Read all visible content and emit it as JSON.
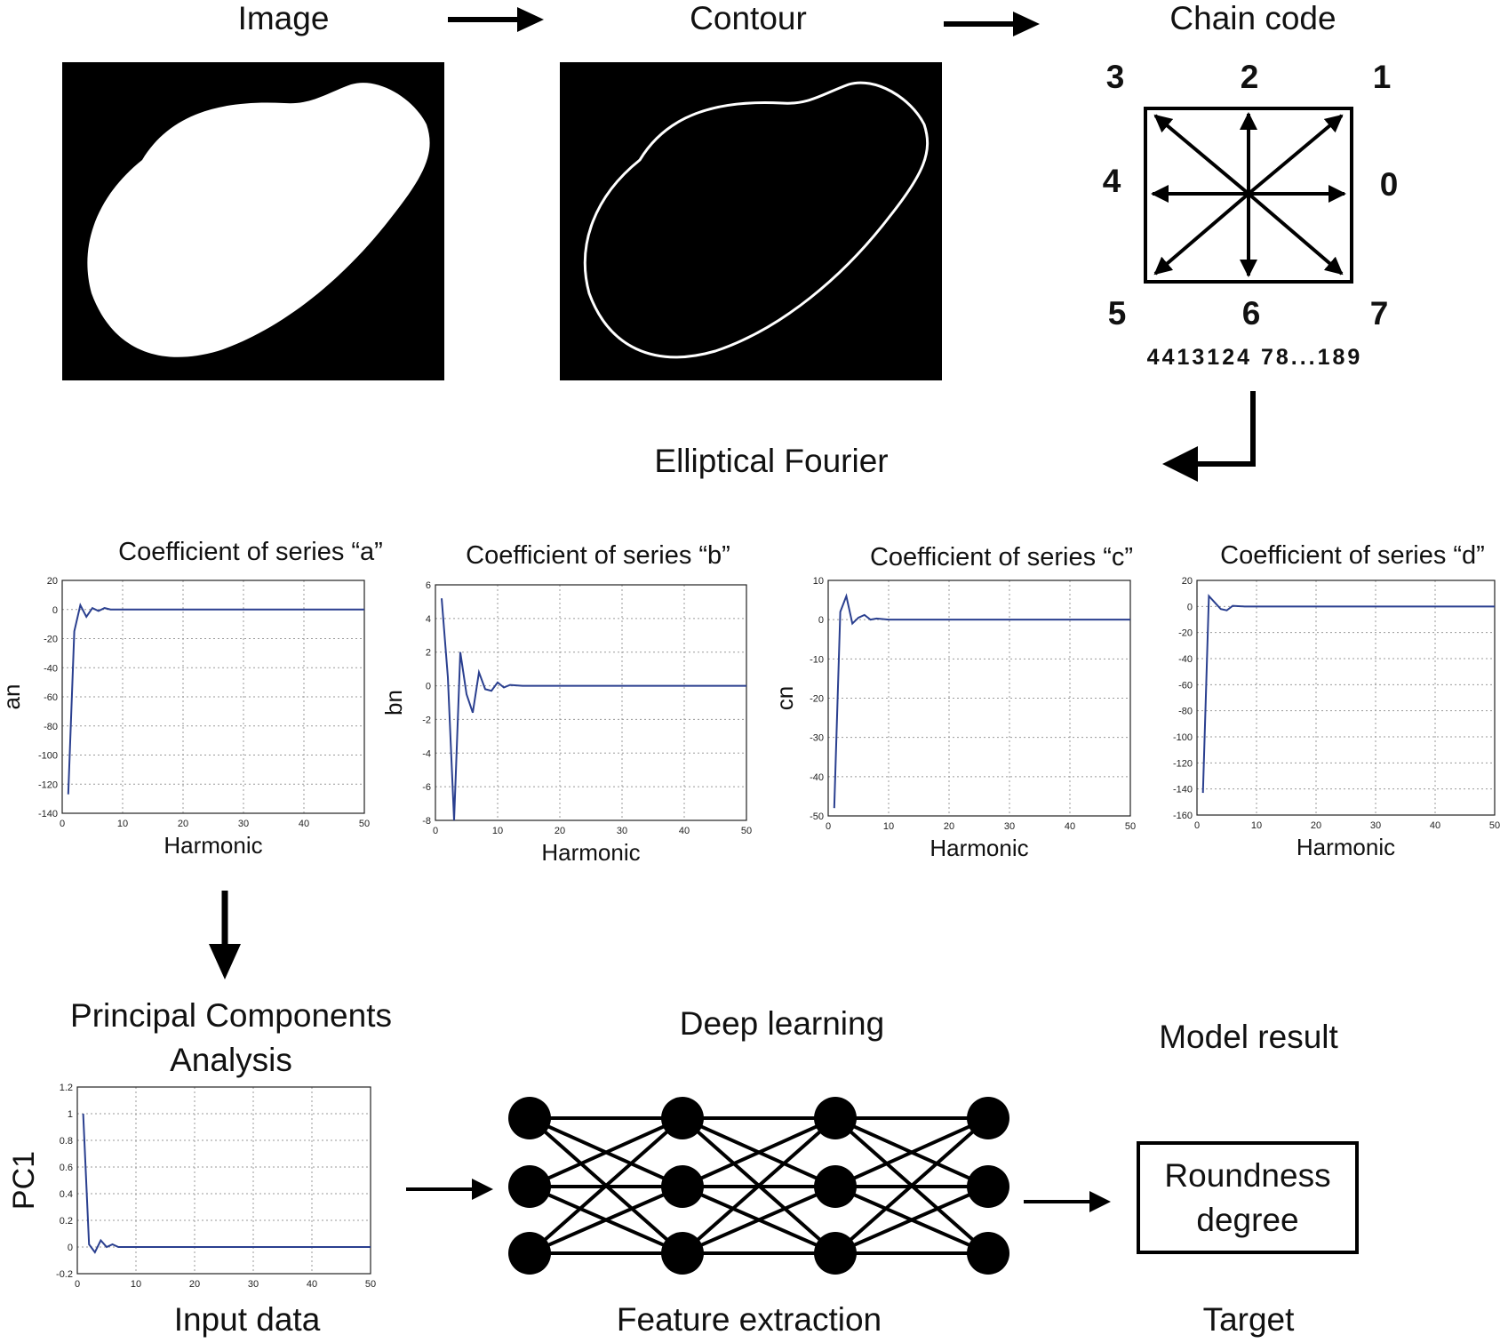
{
  "pipeline": {
    "image_label": "Image",
    "contour_label": "Contour",
    "chain_code_label": "Chain code",
    "direction_numbers": [
      "3",
      "2",
      "1",
      "4",
      "0",
      "5",
      "6",
      "7"
    ],
    "chain_code_sequence": "4413124 78...189",
    "elliptical_fourier_label": "Elliptical Fourier",
    "pca_label": "Principal Components\nAnalysis",
    "deep_learning_label": "Deep learning",
    "model_result_label": "Model result",
    "result_box_text": "Roundness\ndegree",
    "input_data_label": "Input data",
    "feature_extraction_label": "Feature extraction",
    "target_label": "Target"
  },
  "colors": {
    "line": "#2a3f8f",
    "grid": "#9a9a9a",
    "shape": "#ffffff",
    "panel": "#000000"
  },
  "chart_data": [
    {
      "type": "line",
      "title": "Coefficient of series “a”",
      "xlabel": "Harmonic",
      "ylabel": "an",
      "xlim": [
        0,
        50
      ],
      "ylim": [
        -140,
        20
      ],
      "grid": true,
      "xticks": [
        0,
        10,
        20,
        30,
        40,
        50
      ],
      "yticks": [
        20,
        0,
        -20,
        -40,
        -60,
        -80,
        -100,
        -120,
        -140
      ],
      "x": [
        1,
        2,
        3,
        4,
        5,
        6,
        7,
        8,
        10,
        15,
        20,
        30,
        40,
        50
      ],
      "y": [
        -127,
        -15,
        3,
        -5,
        1,
        -1,
        1,
        0,
        0,
        0,
        0,
        0,
        0,
        0
      ]
    },
    {
      "type": "line",
      "title": "Coefficient of series “b”",
      "xlabel": "Harmonic",
      "ylabel": "bn",
      "xlim": [
        0,
        50
      ],
      "ylim": [
        -8,
        6
      ],
      "grid": true,
      "xticks": [
        0,
        10,
        20,
        30,
        40,
        50
      ],
      "yticks": [
        6,
        4,
        2,
        0,
        -2,
        -4,
        -6,
        -8
      ],
      "x": [
        1,
        2,
        3,
        4,
        5,
        6,
        7,
        8,
        9,
        10,
        11,
        12,
        14,
        20,
        30,
        40,
        50
      ],
      "y": [
        5.2,
        0.5,
        -8,
        2,
        -0.5,
        -1.6,
        0.8,
        -0.2,
        -0.3,
        0.2,
        -0.1,
        0.05,
        0,
        0,
        0,
        0,
        0
      ]
    },
    {
      "type": "line",
      "title": "Coefficient of series “c”",
      "xlabel": "Harmonic",
      "ylabel": "cn",
      "xlim": [
        0,
        50
      ],
      "ylim": [
        -50,
        10
      ],
      "grid": true,
      "xticks": [
        0,
        10,
        20,
        30,
        40,
        50
      ],
      "yticks": [
        10,
        0,
        -10,
        -20,
        -30,
        -40,
        -50
      ],
      "x": [
        1,
        2,
        3,
        4,
        5,
        6,
        7,
        8,
        10,
        20,
        30,
        40,
        50
      ],
      "y": [
        -48,
        2,
        6,
        -1,
        0.5,
        1.2,
        0,
        0.3,
        0,
        0,
        0,
        0,
        0
      ]
    },
    {
      "type": "line",
      "title": "Coefficient of series “d”",
      "xlabel": "Harmonic",
      "ylabel": "",
      "xlim": [
        0,
        50
      ],
      "ylim": [
        -160,
        20
      ],
      "grid": true,
      "xticks": [
        0,
        10,
        20,
        30,
        40,
        50
      ],
      "yticks": [
        20,
        0,
        -20,
        -40,
        -60,
        -80,
        -100,
        -120,
        -140,
        -160
      ],
      "x": [
        1,
        2,
        3,
        4,
        5,
        6,
        8,
        10,
        20,
        30,
        40,
        50
      ],
      "y": [
        -143,
        8,
        3,
        -2,
        -3,
        0.5,
        0,
        0,
        0,
        0,
        0,
        0
      ]
    },
    {
      "type": "line",
      "title": "",
      "xlabel": "",
      "ylabel": "PC1",
      "xlim": [
        0,
        50
      ],
      "ylim": [
        -0.2,
        1.2
      ],
      "grid": true,
      "xticks": [
        0,
        10,
        20,
        30,
        40,
        50
      ],
      "yticks": [
        1.2,
        1,
        0.8,
        0.6,
        0.4,
        0.2,
        0,
        -0.2
      ],
      "x": [
        1,
        2,
        3,
        4,
        5,
        6,
        7,
        8,
        10,
        20,
        30,
        40,
        50
      ],
      "y": [
        1,
        0.02,
        -0.04,
        0.05,
        0,
        0.02,
        0,
        0,
        0,
        0,
        0,
        0,
        0
      ]
    }
  ]
}
